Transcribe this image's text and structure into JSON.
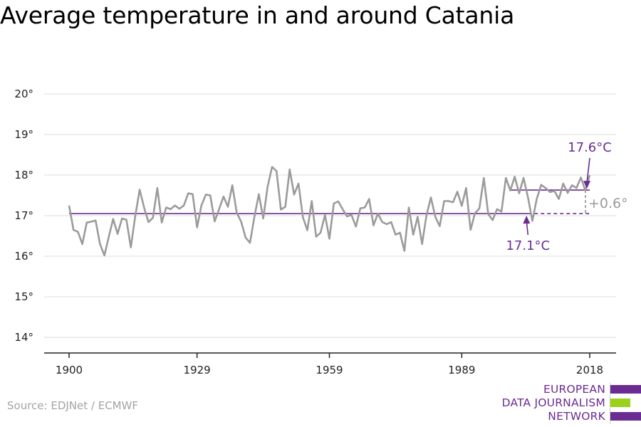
{
  "source": "Source: EDJNet / ECMWF",
  "logo": {
    "lines": [
      "EUROPEAN",
      "DATA JOURNALISM",
      "NETWORK"
    ],
    "colors": {
      "purple": "#6b2c91",
      "green": "#9bd11b"
    }
  },
  "chart_data": {
    "type": "line",
    "title": "Average temperature in and around Catania",
    "xlabel": "",
    "ylabel": "",
    "x_ticks": [
      1900,
      1929,
      1959,
      1989,
      2018
    ],
    "x_range": [
      1900,
      2018
    ],
    "y_ticks": [
      14,
      15,
      16,
      17,
      18,
      19,
      20
    ],
    "y_tick_labels": [
      "14°",
      "15°",
      "16°",
      "17°",
      "18°",
      "19°",
      "20°"
    ],
    "ylim": [
      13.6,
      20.6
    ],
    "grid": "horizontal",
    "colors": {
      "series": "#9b9b9b",
      "reference": "#6b2c91",
      "grid": "#dcdcdc"
    },
    "series": [
      {
        "x_start": 1900,
        "values": [
          17.25,
          16.65,
          16.6,
          16.3,
          16.83,
          16.85,
          16.88,
          16.3,
          16.02,
          16.48,
          16.92,
          16.55,
          16.93,
          16.9,
          16.22,
          16.99,
          17.64,
          17.2,
          16.84,
          16.95,
          17.68,
          16.83,
          17.2,
          17.16,
          17.25,
          17.17,
          17.25,
          17.55,
          17.53,
          16.71,
          17.25,
          17.52,
          17.5,
          16.86,
          17.16,
          17.47,
          17.22,
          17.75,
          17.07,
          16.85,
          16.46,
          16.33,
          16.97,
          17.53,
          16.93,
          17.72,
          18.2,
          18.1,
          17.15,
          17.22,
          18.14,
          17.52,
          17.79,
          16.96,
          16.64,
          17.36,
          16.48,
          16.58,
          17.02,
          16.43,
          17.3,
          17.35,
          17.16,
          16.98,
          17.02,
          16.73,
          17.18,
          17.2,
          17.41,
          16.76,
          17.05,
          16.84,
          16.79,
          16.84,
          16.53,
          16.58,
          16.13,
          17.2,
          16.53,
          16.97,
          16.3,
          17.01,
          17.45,
          16.97,
          16.74,
          17.36,
          17.36,
          17.33,
          17.59,
          17.24,
          17.68,
          16.65,
          17.06,
          17.18,
          17.93,
          17.04,
          16.89,
          17.16,
          17.1,
          17.93,
          17.62,
          17.96,
          17.55,
          17.93,
          17.45,
          16.87,
          17.42,
          17.76,
          17.68,
          17.58,
          17.61,
          17.41,
          17.79,
          17.56,
          17.75,
          17.68,
          17.94,
          17.62,
          18.0
        ]
      }
    ],
    "reference_lines": [
      {
        "label": "17.1°C",
        "value": 17.05,
        "x_from": 1900,
        "x_to": 2018,
        "style": "solid-then-dashed",
        "dash_from": 2004
      },
      {
        "label": "17.6°C",
        "value": 17.63,
        "x_from": 2000,
        "x_to": 2018,
        "style": "solid"
      }
    ],
    "annotations": [
      {
        "text": "17.6°C",
        "target": "recent-mean"
      },
      {
        "text": "17.1°C",
        "target": "long-term-mean"
      },
      {
        "text": "+0.6°",
        "target": "difference"
      }
    ]
  }
}
